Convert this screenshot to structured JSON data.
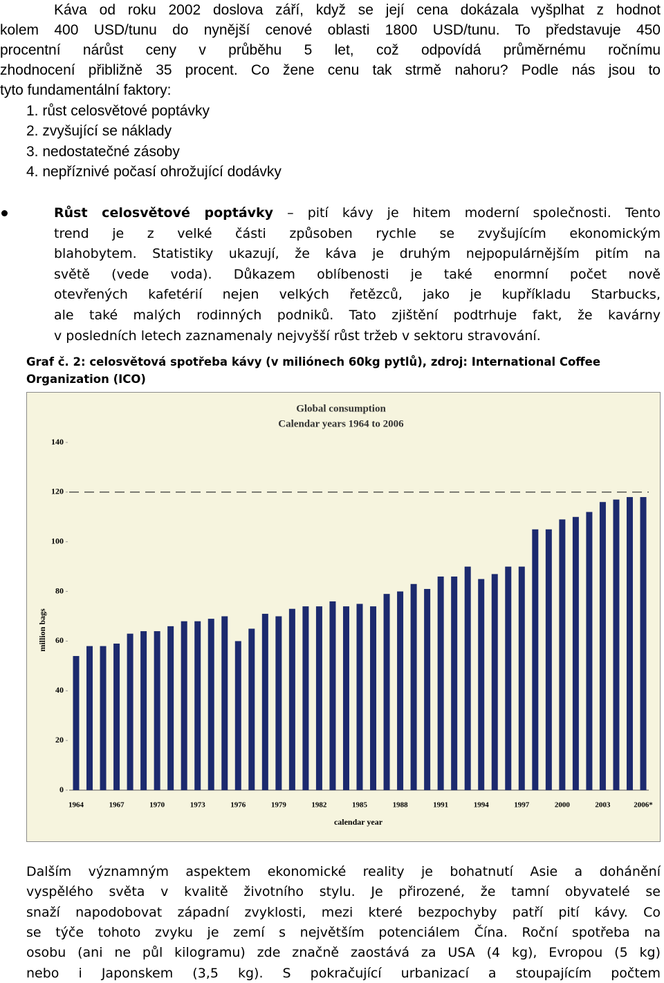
{
  "intro": {
    "lines": [
      "Káva od roku 2002 doslova září, když se její cena dokázala vyšplhat z hodnot",
      "kolem 400 USD/tunu do nynější cenové oblasti 1800 USD/tunu. To představuje 450",
      "procentní nárůst ceny v průběhu 5 let, což odpovídá průměrnému ročnímu",
      "zhodnocení přibližně 35 procent.  Co žene cenu tak strmě nahoru? Podle nás jsou to",
      "tyto fundamentální faktory:"
    ]
  },
  "factors": [
    "1. růst celosvětové poptávky",
    "2. zvyšující se náklady",
    "3. nedostatečné zásoby",
    "4. nepříznivé počasí ohrožující dodávky"
  ],
  "bullet": {
    "heading": "Růst celosvětové poptávky",
    "lines": [
      "– pití kávy je hitem moderní společnosti. Tento",
      "trend je z velké části způsoben rychle se zvyšujícím ekonomickým",
      "blahobytem. Statistiky ukazují, že káva je druhým nejpopulárnějším pitím na",
      "světě (vede voda). Důkazem oblíbenosti je také enormní počet nově",
      "otevřených kafetérií nejen velkých řetězců, jako je kupříkladu Starbucks,",
      "ale také malých rodinných podniků. Tato zjištění podtrhuje fakt, že kavárny",
      "v posledních letech zaznamenaly nejvyšší růst tržeb v sektoru stravování."
    ]
  },
  "caption": {
    "lines": [
      "Graf č. 2: celosvětová spotřeba kávy (v miliónech 60kg pytlů), zdroj: International Coffee",
      "Organization (ICO)"
    ]
  },
  "chart_data": {
    "type": "bar",
    "title": "Global consumption",
    "subtitle": "Calendar years 1964 to 2006",
    "y_label": "million bags",
    "x_label": "calendar year",
    "color": "#1c2a6e",
    "categories": [
      "1964",
      null,
      null,
      "1967",
      null,
      null,
      "1970",
      null,
      null,
      "1973",
      null,
      null,
      "1976",
      null,
      null,
      "1979",
      null,
      null,
      "1982",
      null,
      null,
      "1985",
      null,
      null,
      "1988",
      null,
      null,
      "1991",
      null,
      null,
      "1994",
      null,
      null,
      "1997",
      null,
      null,
      "2000",
      null,
      null,
      "2003",
      null,
      null,
      "2006*"
    ],
    "values": [
      54,
      58,
      58,
      59,
      63,
      64,
      64,
      66,
      68,
      68,
      69,
      70,
      60,
      65,
      71,
      70,
      73,
      74,
      74,
      76,
      74,
      75,
      74,
      79,
      80,
      83,
      81,
      86,
      86,
      90,
      85,
      87,
      90,
      90,
      105,
      105,
      109,
      110,
      112,
      116,
      117,
      118,
      118
    ],
    "ylim": [
      0,
      140
    ],
    "yticks": [
      0,
      20,
      40,
      60,
      80,
      100,
      120,
      140
    ],
    "reference_line": 120
  },
  "closing": {
    "lines": [
      "Dalším významným aspektem ekonomické reality je bohatnutí Asie a dohánění",
      "vyspělého světa v kvalitě životního stylu. Je přirozené, že tamní obyvatelé se",
      "snaží napodobovat západní zvyklosti, mezi které bezpochyby patří pití kávy. Co",
      "se týče tohoto zvyku je zemí s největším potenciálem Čína. Roční spotřeba na",
      "osobu (ani ne půl kilogramu) zde značně zaostává za USA (4 kg), Evropou (5 kg)",
      "nebo i Japonskem (3,5 kg). S pokračující urbanizací a stoupajícím počtem"
    ]
  }
}
